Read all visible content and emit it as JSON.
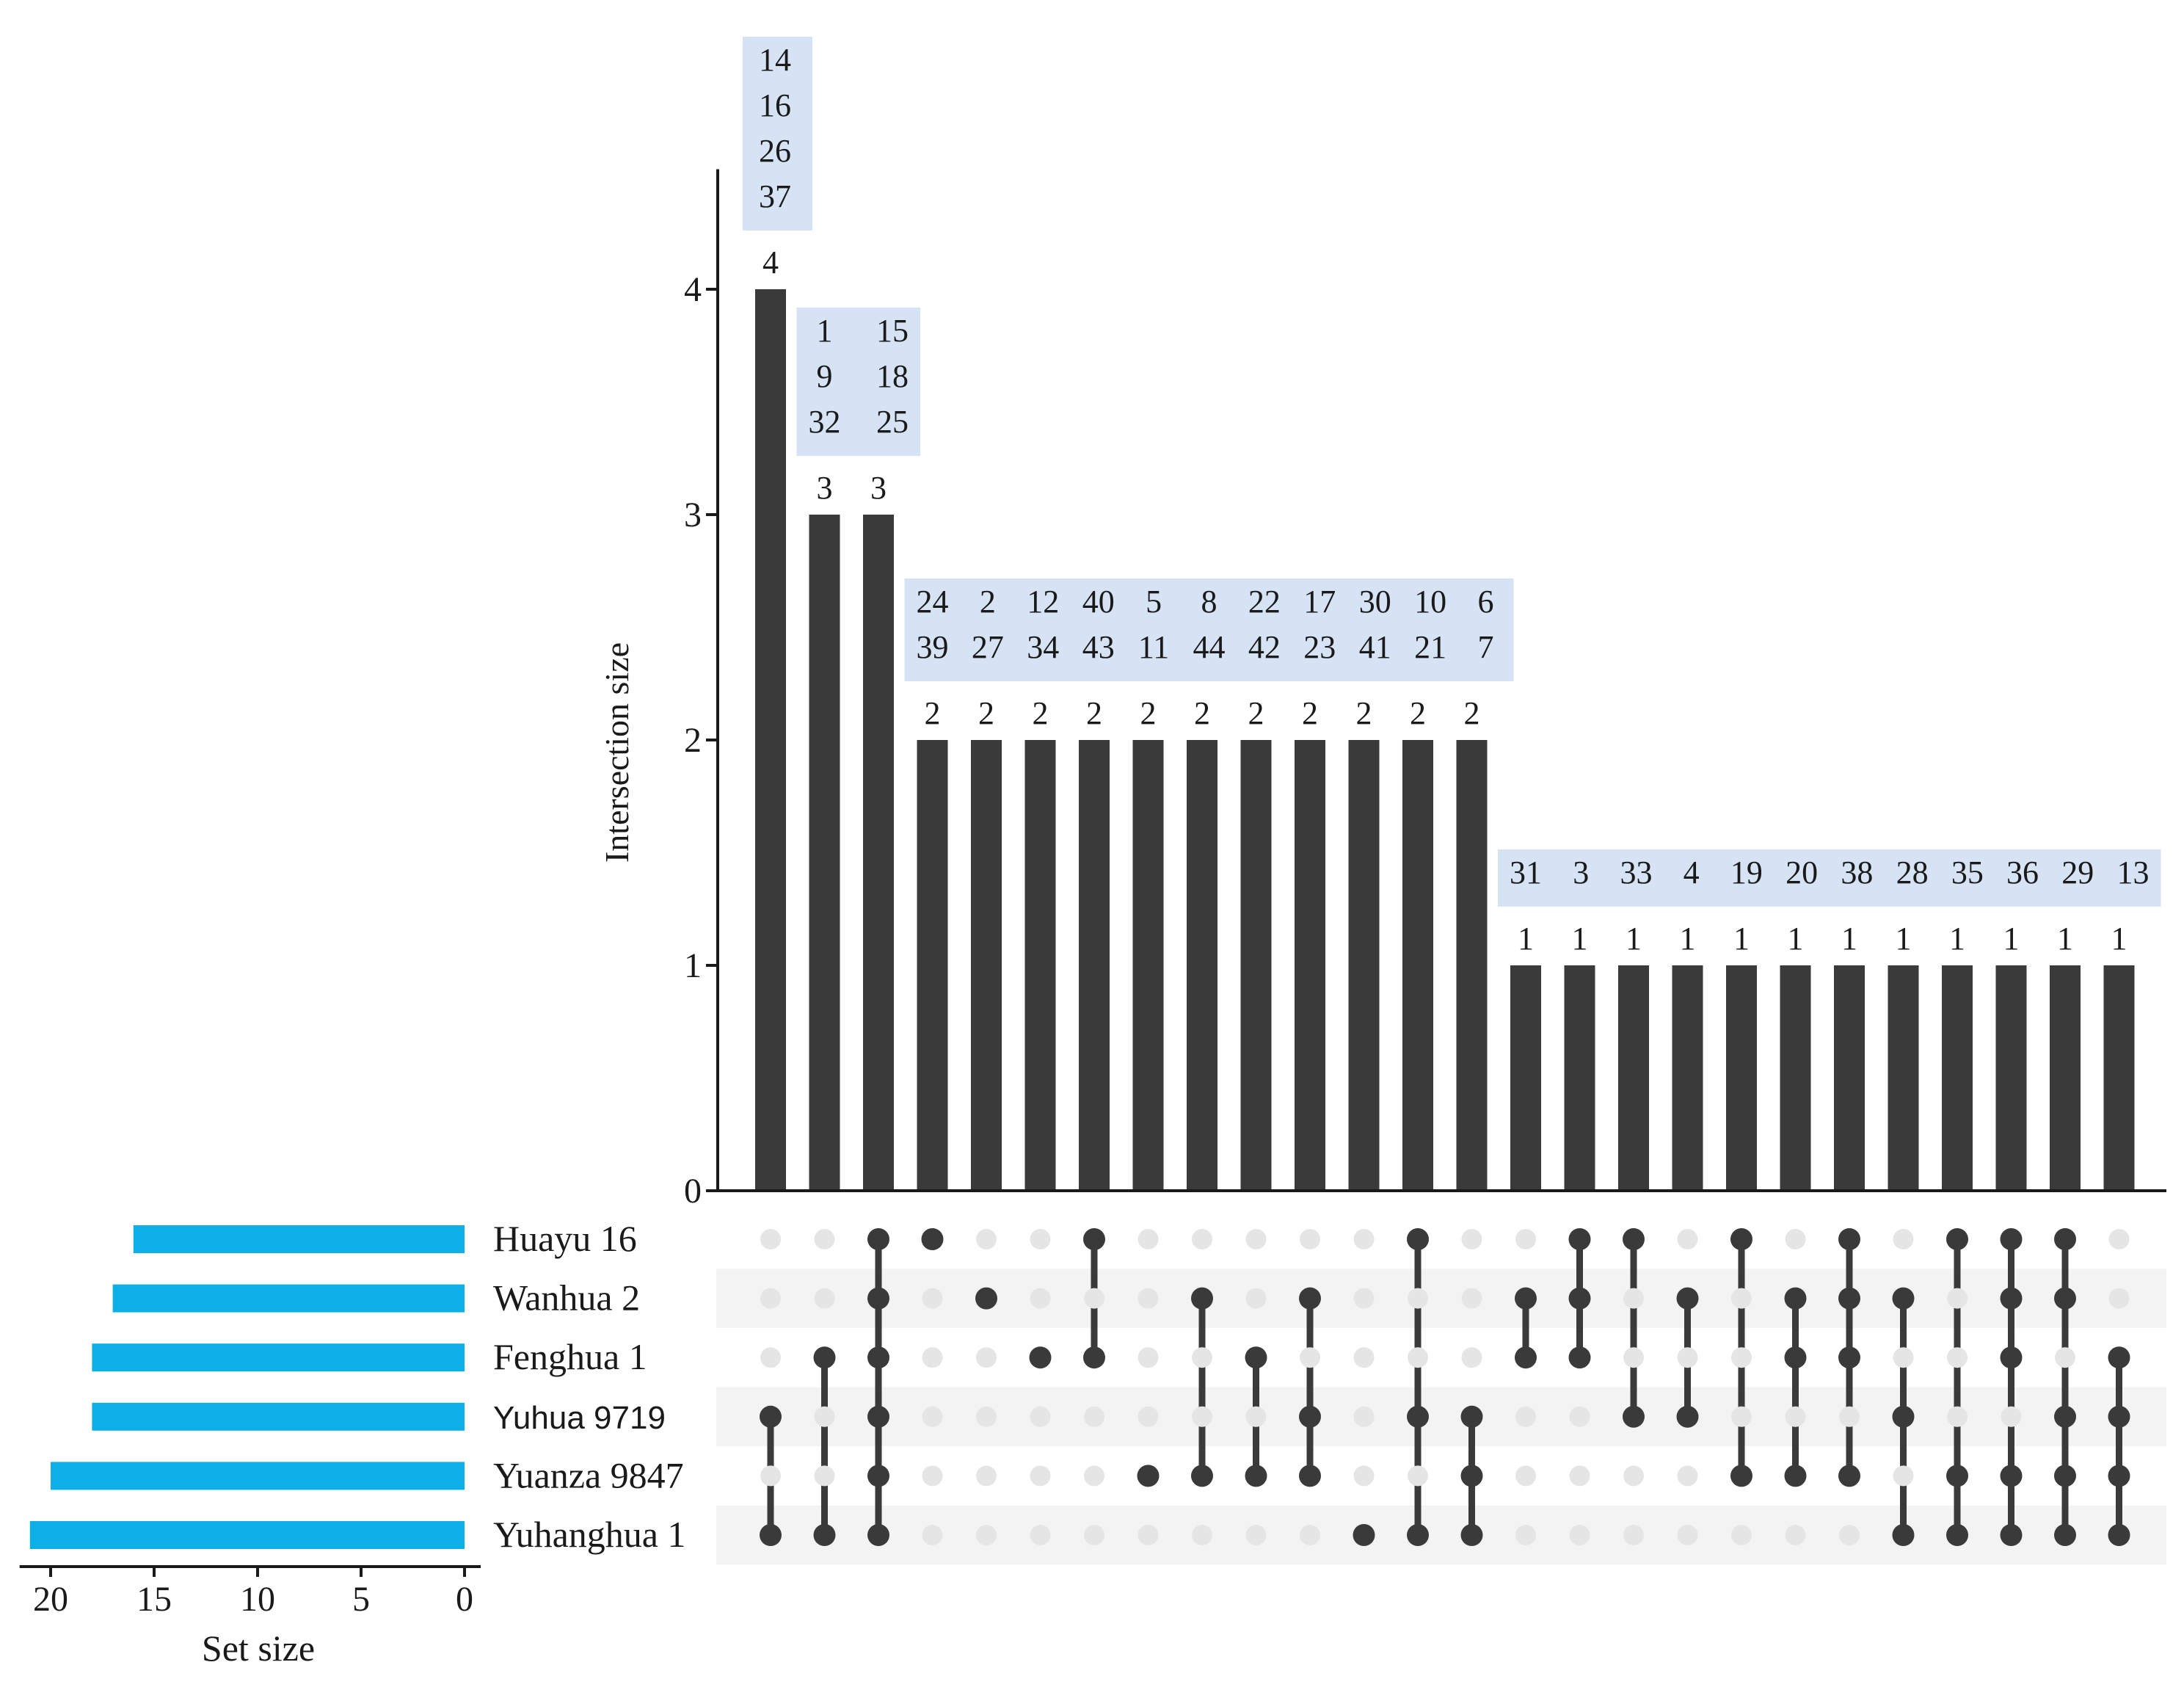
{
  "chart_data": {
    "type": "upset",
    "ylabel": "Intersection size",
    "set_size_label": "Set size",
    "y_ticks": [
      0,
      1,
      2,
      3,
      4
    ],
    "ylim": [
      0,
      4.5
    ],
    "set_axis_ticks": [
      20,
      15,
      10,
      5,
      0
    ],
    "set_axis_max": 21.5,
    "colors": {
      "bar": "#3a3a3a",
      "set_bar": "#0cb0e6",
      "dot_active": "#3a3a3a",
      "dot_inactive": "#e5e5e5",
      "stripe": "#f3f3f3",
      "label_box": "#d6e3f5"
    },
    "sets": [
      {
        "name": "Huayu 16",
        "size": 16
      },
      {
        "name": "Wanhua 2",
        "size": 17
      },
      {
        "name": "Fenghua 1",
        "size": 18
      },
      {
        "name": "Yuhua 9719",
        "size": 18
      },
      {
        "name": "Yuanza 9847",
        "size": 20
      },
      {
        "name": "Yuhanghua 1",
        "size": 21
      }
    ],
    "intersections": [
      {
        "size": 4,
        "sets": [
          3,
          5
        ]
      },
      {
        "size": 3,
        "sets": [
          2,
          5
        ]
      },
      {
        "size": 3,
        "sets": [
          0,
          1,
          2,
          3,
          4,
          5
        ]
      },
      {
        "size": 2,
        "sets": [
          0
        ]
      },
      {
        "size": 2,
        "sets": [
          1
        ]
      },
      {
        "size": 2,
        "sets": [
          2
        ]
      },
      {
        "size": 2,
        "sets": [
          0,
          2
        ]
      },
      {
        "size": 2,
        "sets": [
          4
        ]
      },
      {
        "size": 2,
        "sets": [
          1,
          4
        ]
      },
      {
        "size": 2,
        "sets": [
          2,
          4
        ]
      },
      {
        "size": 2,
        "sets": [
          1,
          3,
          4
        ]
      },
      {
        "size": 2,
        "sets": [
          5
        ]
      },
      {
        "size": 2,
        "sets": [
          0,
          3,
          5
        ]
      },
      {
        "size": 2,
        "sets": [
          3,
          4,
          5
        ]
      },
      {
        "size": 1,
        "sets": [
          1,
          2
        ]
      },
      {
        "size": 1,
        "sets": [
          0,
          1,
          2
        ]
      },
      {
        "size": 1,
        "sets": [
          0,
          3
        ]
      },
      {
        "size": 1,
        "sets": [
          1,
          3
        ]
      },
      {
        "size": 1,
        "sets": [
          0,
          4
        ]
      },
      {
        "size": 1,
        "sets": [
          1,
          2,
          4
        ]
      },
      {
        "size": 1,
        "sets": [
          0,
          1,
          2,
          4
        ]
      },
      {
        "size": 1,
        "sets": [
          1,
          3,
          5
        ]
      },
      {
        "size": 1,
        "sets": [
          0,
          4,
          5
        ]
      },
      {
        "size": 1,
        "sets": [
          0,
          1,
          2,
          4,
          5
        ]
      },
      {
        "size": 1,
        "sets": [
          0,
          1,
          3,
          4,
          5
        ]
      },
      {
        "size": 1,
        "sets": [
          2,
          3,
          4,
          5
        ]
      }
    ],
    "annotations": [
      {
        "from": 0,
        "to": 0,
        "columns": [
          [
            "14",
            "16",
            "26",
            "37"
          ]
        ]
      },
      {
        "from": 1,
        "to": 2,
        "columns": [
          [
            "1",
            "9",
            "32"
          ],
          [
            "15",
            "18",
            "25"
          ]
        ]
      },
      {
        "from": 3,
        "to": 13,
        "columns": [
          [
            "24",
            "39"
          ],
          [
            "2",
            "27"
          ],
          [
            "12",
            "34"
          ],
          [
            "40",
            "43"
          ],
          [
            "5",
            "11"
          ],
          [
            "8",
            "44"
          ],
          [
            "22",
            "42"
          ],
          [
            "17",
            "23"
          ],
          [
            "30",
            "41"
          ],
          [
            "10",
            "21"
          ],
          [
            "6",
            "7"
          ]
        ]
      },
      {
        "from": 14,
        "to": 25,
        "columns": [
          [
            "31"
          ],
          [
            "3"
          ],
          [
            "33"
          ],
          [
            "4"
          ],
          [
            "19"
          ],
          [
            "20"
          ],
          [
            "38"
          ],
          [
            "28"
          ],
          [
            "35"
          ],
          [
            "36"
          ],
          [
            "29"
          ],
          [
            "13"
          ]
        ]
      }
    ]
  }
}
